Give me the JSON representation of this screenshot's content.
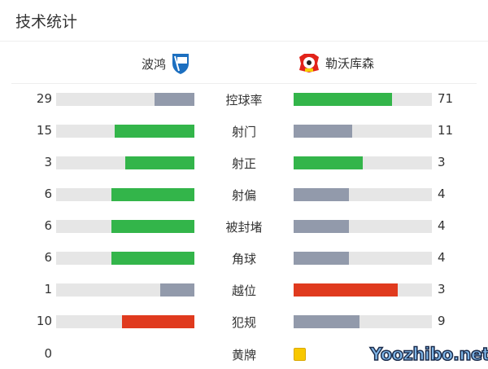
{
  "title": "技术统计",
  "home": {
    "name": "波鸿",
    "logo_color": "#1c6fc0"
  },
  "away": {
    "name": "勒沃库森",
    "logo_color": "#e2231a"
  },
  "colors": {
    "green": "#33b54a",
    "gray": "#929aab",
    "red": "#e03a1e",
    "track": "#e6e6e6",
    "yellow": "#f8c800"
  },
  "stats": [
    {
      "label": "控球率",
      "home": "29",
      "away": "71",
      "home_val": 29,
      "away_val": 71,
      "home_color": "gray",
      "away_color": "green"
    },
    {
      "label": "射门",
      "home": "15",
      "away": "11",
      "home_val": 15,
      "away_val": 11,
      "home_color": "green",
      "away_color": "gray"
    },
    {
      "label": "射正",
      "home": "3",
      "away": "3",
      "home_val": 3,
      "away_val": 3,
      "home_color": "green",
      "away_color": "green"
    },
    {
      "label": "射偏",
      "home": "6",
      "away": "4",
      "home_val": 6,
      "away_val": 4,
      "home_color": "green",
      "away_color": "gray"
    },
    {
      "label": "被封堵",
      "home": "6",
      "away": "4",
      "home_val": 6,
      "away_val": 4,
      "home_color": "green",
      "away_color": "gray"
    },
    {
      "label": "角球",
      "home": "6",
      "away": "4",
      "home_val": 6,
      "away_val": 4,
      "home_color": "green",
      "away_color": "gray"
    },
    {
      "label": "越位",
      "home": "1",
      "away": "3",
      "home_val": 1,
      "away_val": 3,
      "home_color": "gray",
      "away_color": "red"
    },
    {
      "label": "犯规",
      "home": "10",
      "away": "9",
      "home_val": 10,
      "away_val": 9,
      "home_color": "red",
      "away_color": "gray"
    }
  ],
  "yellow": {
    "label": "黄牌",
    "home": "0"
  },
  "watermark": "Yoozhibo.net"
}
